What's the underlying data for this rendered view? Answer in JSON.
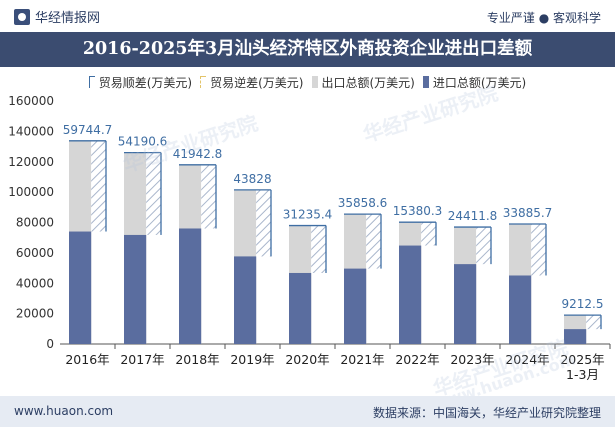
{
  "header": {
    "brand": "华经情报网",
    "slogan": "专业严谨 ● 客观科学",
    "title": "2016-2025年3月汕头经济特区外商投资企业进出口差额"
  },
  "footer": {
    "url": "www.huaon.com",
    "source": "数据来源：中国海关，华经产业研究院整理"
  },
  "watermarks": [
    "华经产业研究院",
    "华经产业研究院",
    "华经产业研究院",
    "www.huaon.com"
  ],
  "colors": {
    "surplus": "#3f6ea3",
    "deficit": "#e3c46a",
    "total": "#d6d6d6",
    "import": "#5a6d9f",
    "label": "#3f6ea3"
  },
  "chart_data": {
    "type": "bar",
    "categories": [
      "2016年",
      "2017年",
      "2018年",
      "2019年",
      "2020年",
      "2021年",
      "2022年",
      "2023年",
      "2024年",
      "2025年\n1-3月"
    ],
    "series": [
      {
        "name": "贸易顺差(万美元)",
        "values": [
          59744.7,
          54190.6,
          41942.8,
          43828,
          31235.4,
          35858.6,
          15380.3,
          24411.8,
          33885.7,
          9212.5
        ]
      },
      {
        "name": "贸易逆差(万美元)",
        "values": [
          null,
          null,
          null,
          null,
          null,
          null,
          null,
          null,
          null,
          null
        ]
      },
      {
        "name": "出口总额(万美元)",
        "values": [
          133800,
          126000,
          118000,
          101500,
          78000,
          85500,
          80200,
          77000,
          79000,
          19000
        ]
      },
      {
        "name": "进口总额(万美元)",
        "values": [
          74055.3,
          71809.4,
          76057.2,
          57672,
          46764.6,
          49641.4,
          64819.7,
          52588.2,
          45114.3,
          9787.5
        ]
      }
    ],
    "data_labels": [
      "59744.7",
      "54190.6",
      "41942.8",
      "43828",
      "31235.4",
      "35858.6",
      "15380.3",
      "24411.8",
      "33885.7",
      "9212.5"
    ],
    "yticks": [
      "0",
      "20000",
      "40000",
      "60000",
      "80000",
      "100000",
      "120000",
      "140000",
      "160000"
    ],
    "ylim": [
      0,
      160000
    ],
    "legend_position": "top"
  }
}
